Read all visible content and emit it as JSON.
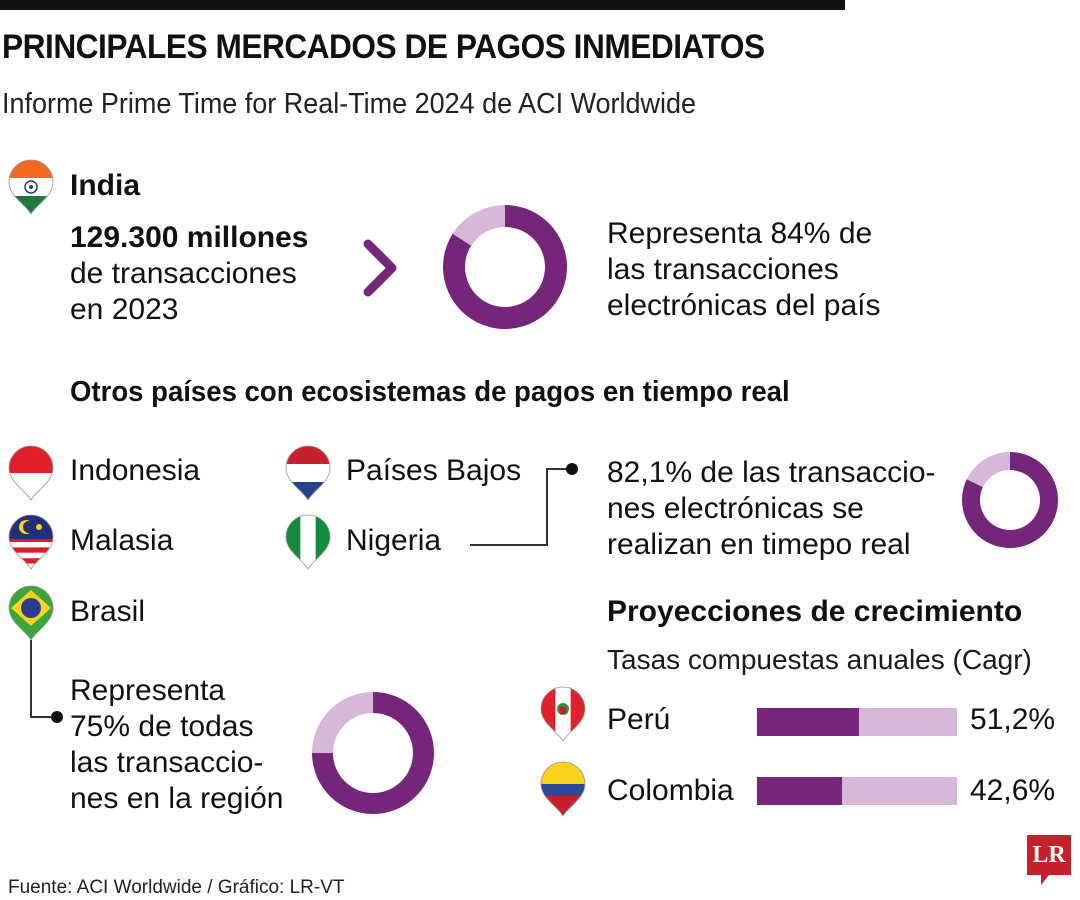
{
  "header": {
    "title": "PRINCIPALES MERCADOS DE PAGOS INMEDIATOS",
    "subtitle": "Informe Prime Time for Real-Time 2024 de ACI Worldwide"
  },
  "india": {
    "name": "India",
    "value": "129.300 millones",
    "line2": "de transacciones",
    "line3": "en 2023",
    "share_pre": "Representa ",
    "share_value": "84%",
    "share_post": " de",
    "share_line2": "las transacciones",
    "share_line3": "electrónicas del país"
  },
  "others": {
    "heading": "Otros países con ecosistemas de pagos en tiempo real",
    "countries": [
      "Indonesia",
      "Países Bajos",
      "Malasia",
      "Nigeria",
      "Brasil"
    ],
    "nigeria_value": "82,1%",
    "nigeria_line1_post": " de las transaccio-",
    "nigeria_line2": "nes electrónicas se",
    "nigeria_line3": "realizan en timepo real",
    "brasil_line1": "Representa",
    "brasil_value": "75%",
    "brasil_line2_post": " de todas",
    "brasil_line3": "las transaccio-",
    "brasil_line4": "nes en la región"
  },
  "projections": {
    "heading": "Proyecciones de crecimiento",
    "subheading": "Tasas compuestas anuales (Cagr)",
    "rows": [
      {
        "country": "Perú",
        "label": "51,2%"
      },
      {
        "country": "Colombia",
        "label": "42,6%"
      }
    ]
  },
  "footer": {
    "source": "Fuente: ACI Worldwide / Gráfico: LR-VT",
    "logo": "LR"
  },
  "colors": {
    "accent": "#76267a",
    "accent_light": "#d8b8d8",
    "logo": "#c8202a"
  },
  "flags": {
    "india": {
      "type": "h",
      "colors": [
        "#f26a22",
        "#ffffff",
        "#1f7a3a"
      ],
      "emblem": "#1d3d8f"
    },
    "indonesia": {
      "type": "h",
      "colors": [
        "#e0212b",
        "#ffffff"
      ]
    },
    "netherlands": {
      "type": "h",
      "colors": [
        "#c8202a",
        "#ffffff",
        "#27418f"
      ]
    },
    "malaysia": {
      "type": "malaysia",
      "colors": [
        "#d6202a",
        "#ffffff",
        "#1f2f7a",
        "#f8d21c"
      ]
    },
    "nigeria": {
      "type": "v",
      "colors": [
        "#138a3c",
        "#ffffff",
        "#138a3c"
      ]
    },
    "brasil": {
      "type": "brasil",
      "colors": [
        "#3aa53a",
        "#f8d21c",
        "#2b3d8f"
      ]
    },
    "peru": {
      "type": "v",
      "colors": [
        "#e0212b",
        "#ffffff",
        "#e0212b"
      ],
      "emblem": "#3b8a3b"
    },
    "colombia": {
      "type": "colombia",
      "colors": [
        "#f8d21c",
        "#2b4a9a",
        "#c8202a"
      ]
    }
  },
  "chart_data": [
    {
      "type": "pie",
      "variant": "donut",
      "title": "India",
      "values": [
        84,
        16
      ],
      "labels": [
        "84%",
        ""
      ]
    },
    {
      "type": "pie",
      "variant": "donut",
      "title": "Nigeria",
      "values": [
        82.1,
        17.9
      ],
      "labels": [
        "82,1%",
        ""
      ]
    },
    {
      "type": "pie",
      "variant": "donut",
      "title": "Brasil",
      "values": [
        75,
        25
      ],
      "labels": [
        "75%",
        ""
      ]
    },
    {
      "type": "bar",
      "orientation": "horizontal",
      "title": "Proyecciones de crecimiento",
      "categories": [
        "Perú",
        "Colombia"
      ],
      "values": [
        51.2,
        42.6
      ],
      "xlim": [
        0,
        100
      ],
      "unit": "%"
    }
  ]
}
